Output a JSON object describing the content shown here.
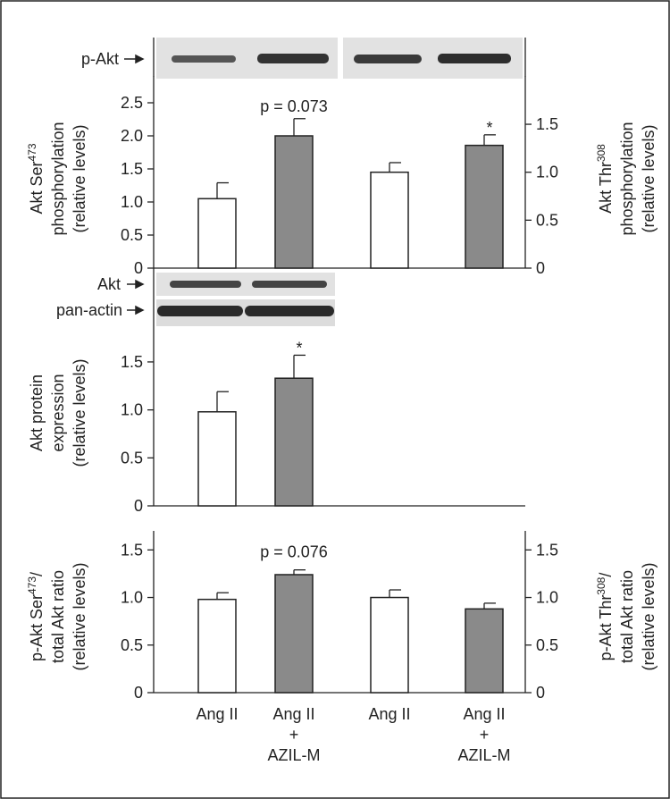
{
  "chart_data": [
    {
      "type": "bar",
      "blot_labels": [
        "p-Akt"
      ],
      "ylabel_lines": [
        {
          "text": "Akt Ser",
          "sup": "473"
        },
        {
          "text": "phosphorylation"
        },
        {
          "text": "(relative levels)"
        }
      ],
      "y2label_lines": [
        {
          "text": "Akt Thr",
          "sup": "308"
        },
        {
          "text": "phosphorylation"
        },
        {
          "text": "(relative levels)"
        }
      ],
      "ylim": [
        0,
        2.9
      ],
      "yticks": [
        0,
        0.5,
        {
          "value": 1,
          "label": "1.0"
        },
        1.5,
        {
          "value": 2,
          "label": "2.0"
        },
        2.5
      ],
      "y2lim": [
        0,
        2.0
      ],
      "y2ticks": [
        0,
        0.5,
        {
          "value": 1,
          "label": "1.0"
        },
        1.5
      ],
      "bar_colors": [
        "#ffffff",
        "#8a8a8a",
        "#ffffff",
        "#8a8a8a"
      ],
      "series": [
        {
          "axis": "y",
          "values": [
            1.05,
            2.0,
            null,
            null
          ],
          "errors": [
            0.24,
            0.26,
            null,
            null
          ]
        },
        {
          "axis": "y2",
          "values": [
            null,
            null,
            1.0,
            1.28
          ],
          "errors": [
            null,
            null,
            0.1,
            0.11
          ]
        }
      ],
      "annotations": [
        "p = 0.073",
        "*"
      ]
    },
    {
      "type": "bar",
      "blot_labels": [
        "Akt",
        "pan-actin"
      ],
      "ylabel_lines": [
        {
          "text": "Akt protein"
        },
        {
          "text": "expression"
        },
        {
          "text": "(relative levels)"
        }
      ],
      "ylim": [
        0,
        1.9
      ],
      "yticks": [
        0,
        0.5,
        {
          "value": 1,
          "label": "1.0"
        },
        1.5
      ],
      "bar_colors": [
        "#ffffff",
        "#8a8a8a"
      ],
      "series": [
        {
          "axis": "y",
          "values": [
            0.98,
            1.33
          ],
          "errors": [
            0.21,
            0.24
          ]
        }
      ],
      "annotations": [
        "*"
      ]
    },
    {
      "type": "bar",
      "ylabel_lines": [
        {
          "text": "p-Akt Ser",
          "sup": "473",
          "after": "/"
        },
        {
          "text": "total Akt ratio"
        },
        {
          "text": "(relative levels)"
        }
      ],
      "y2label_lines": [
        {
          "text": "p-Akt Thr",
          "sup": "308",
          "after": "/"
        },
        {
          "text": "total Akt ratio"
        },
        {
          "text": "(relative levels)"
        }
      ],
      "ylim": [
        0,
        1.7
      ],
      "yticks": [
        0,
        0.5,
        {
          "value": 1,
          "label": "1.0"
        },
        1.5
      ],
      "y2lim": [
        0,
        1.7
      ],
      "y2ticks": [
        0,
        0.5,
        {
          "value": 1,
          "label": "1.0"
        },
        1.5
      ],
      "categories": [
        [
          "Ang II"
        ],
        [
          "Ang II",
          "+",
          "AZIL-M"
        ],
        [
          "Ang II"
        ],
        [
          "Ang II",
          "+",
          "AZIL-M"
        ]
      ],
      "bar_colors": [
        "#ffffff",
        "#8a8a8a",
        "#ffffff",
        "#8a8a8a"
      ],
      "series": [
        {
          "axis": "y",
          "values": [
            0.98,
            1.24,
            null,
            null
          ],
          "errors": [
            0.07,
            0.05,
            null,
            null
          ]
        },
        {
          "axis": "y2",
          "values": [
            null,
            null,
            1.0,
            0.88
          ],
          "errors": [
            null,
            null,
            0.08,
            0.06
          ]
        }
      ],
      "annotations": [
        "p = 0.076"
      ]
    }
  ]
}
